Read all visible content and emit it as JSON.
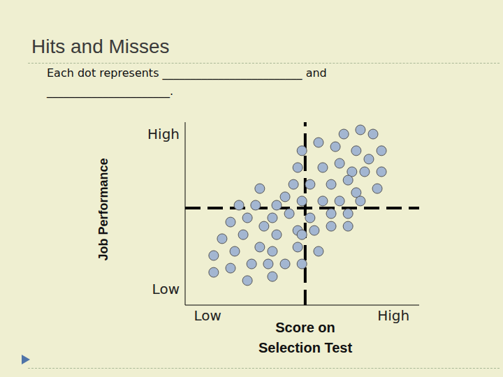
{
  "chart_data": {
    "type": "scatter",
    "title": "Hits and Misses",
    "subtitle": "Each dot represents _________________________ and ______________________.",
    "x_label": "Score on Selection Test",
    "y_label": "Job Performance",
    "x": [
      67.8,
      74.9,
      80.3,
      57.0,
      64.2,
      73.1,
      83.9,
      49.9,
      58.8,
      66.0,
      78.5,
      48.1,
      71.3,
      76.7,
      83.9,
      31.9,
      46.3,
      53.4,
      62.4,
      69.6,
      82.1,
      73.1,
      42.7,
      49.9,
      58.8,
      66.0,
      74.9,
      23.0,
      30.1,
      39.1,
      19.4,
      26.6,
      44.5,
      53.4,
      62.4,
      69.6,
      37.3,
      33.7,
      48.1,
      55.2,
      62.4,
      69.6,
      15.8,
      24.8,
      39.1,
      49.9,
      31.9,
      37.3,
      48.1,
      57.0,
      12.2,
      21.2,
      12.2,
      19.4,
      28.4,
      35.5,
      42.7,
      49.9,
      26.6,
      37.3
    ],
    "y": [
      93.5,
      95.8,
      93.5,
      88.9,
      86.6,
      84.4,
      84.4,
      84.4,
      75.2,
      77.5,
      79.8,
      75.2,
      72.9,
      72.9,
      72.9,
      63.7,
      66.0,
      66.0,
      66.0,
      68.3,
      63.7,
      61.5,
      59.2,
      56.9,
      56.9,
      56.9,
      56.9,
      54.6,
      54.6,
      54.6,
      45.4,
      47.7,
      50.0,
      47.7,
      50.0,
      50.0,
      47.7,
      43.1,
      40.8,
      40.8,
      43.1,
      43.1,
      36.3,
      38.5,
      38.5,
      38.5,
      31.7,
      29.4,
      31.7,
      29.4,
      27.1,
      29.4,
      17.9,
      20.2,
      22.5,
      22.5,
      22.5,
      22.5,
      13.4,
      15.6
    ],
    "xlim": [
      0,
      100
    ],
    "ylim": [
      0,
      100
    ],
    "xticks": [
      {
        "value": 9.6,
        "label": "Low"
      },
      {
        "value": 89,
        "label": "High"
      }
    ],
    "yticks": [
      {
        "value": 8.8,
        "label": "Low"
      },
      {
        "value": 93.5,
        "label": "High"
      }
    ],
    "reference_lines": {
      "x": 51.3,
      "y": 53.1
    },
    "color": "#a3b6d1",
    "marker": "circle",
    "grid": false
  }
}
